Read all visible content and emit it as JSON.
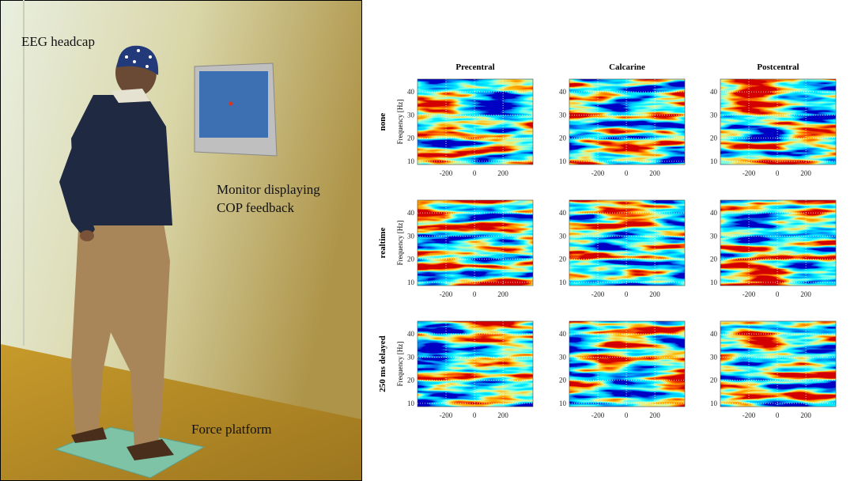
{
  "photo": {
    "labels": {
      "headcap": "EEG headcap",
      "monitor": [
        "Monitor displaying",
        "COP feedback"
      ],
      "platform": "Force platform"
    }
  },
  "panels": {
    "columns": [
      "Precentral",
      "Calcarine",
      "Postcentral"
    ],
    "rows": [
      "none",
      "realtime",
      "250 ms delayed"
    ],
    "ylabel": "Frequency [Hz]",
    "xlim": [
      -400,
      410
    ],
    "ylim": [
      8.6,
      45.5
    ],
    "xticks": [
      -200,
      0,
      200
    ],
    "yticks": [
      10,
      20,
      30,
      40
    ]
  }
}
